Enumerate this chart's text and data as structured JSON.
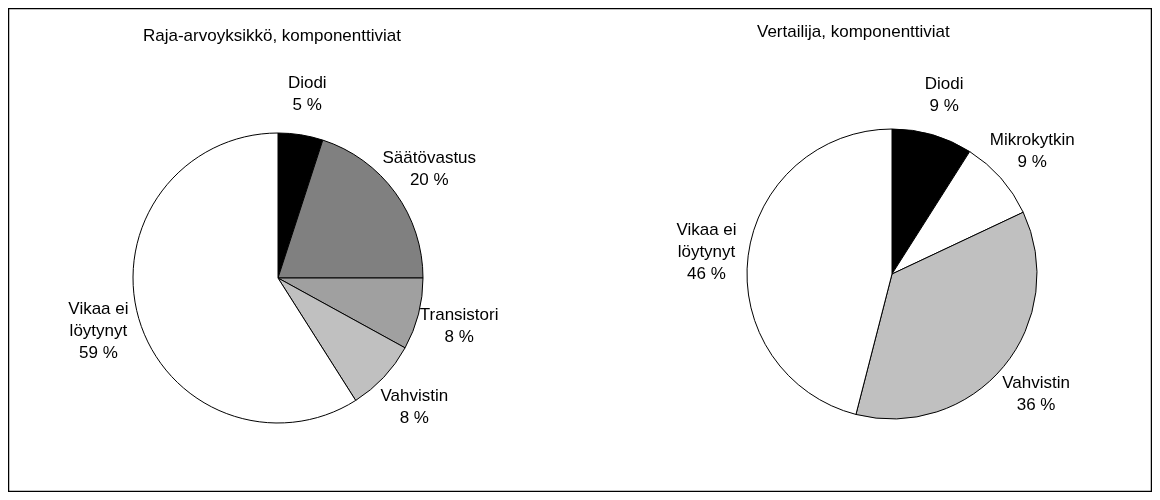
{
  "chart_data": [
    {
      "type": "pie",
      "title": "Raja-arvoyksikkö, komponenttiviat",
      "categories": [
        "Diodi",
        "Säätövastus",
        "Transistori",
        "Vahvistin",
        "Vikaa ei löytynyt"
      ],
      "values": [
        5,
        20,
        8,
        8,
        59
      ],
      "value_labels": [
        "5 %",
        "20 %",
        "8 %",
        "8 %",
        "59 %"
      ],
      "colors": [
        "#000000",
        "#808080",
        "#a0a0a0",
        "#c0c0c0",
        "#ffffff"
      ]
    },
    {
      "type": "pie",
      "title": "Vertailija, komponenttiviat",
      "categories": [
        "Diodi",
        "Mikrokytkin",
        "Vahvistin",
        "Vikaa ei löytynyt"
      ],
      "values": [
        9,
        9,
        36,
        46
      ],
      "value_labels": [
        "9 %",
        "9 %",
        "36 %",
        "46 %"
      ],
      "colors": [
        "#000000",
        "#ffffff",
        "#c0c0c0",
        "#ffffff"
      ]
    }
  ]
}
